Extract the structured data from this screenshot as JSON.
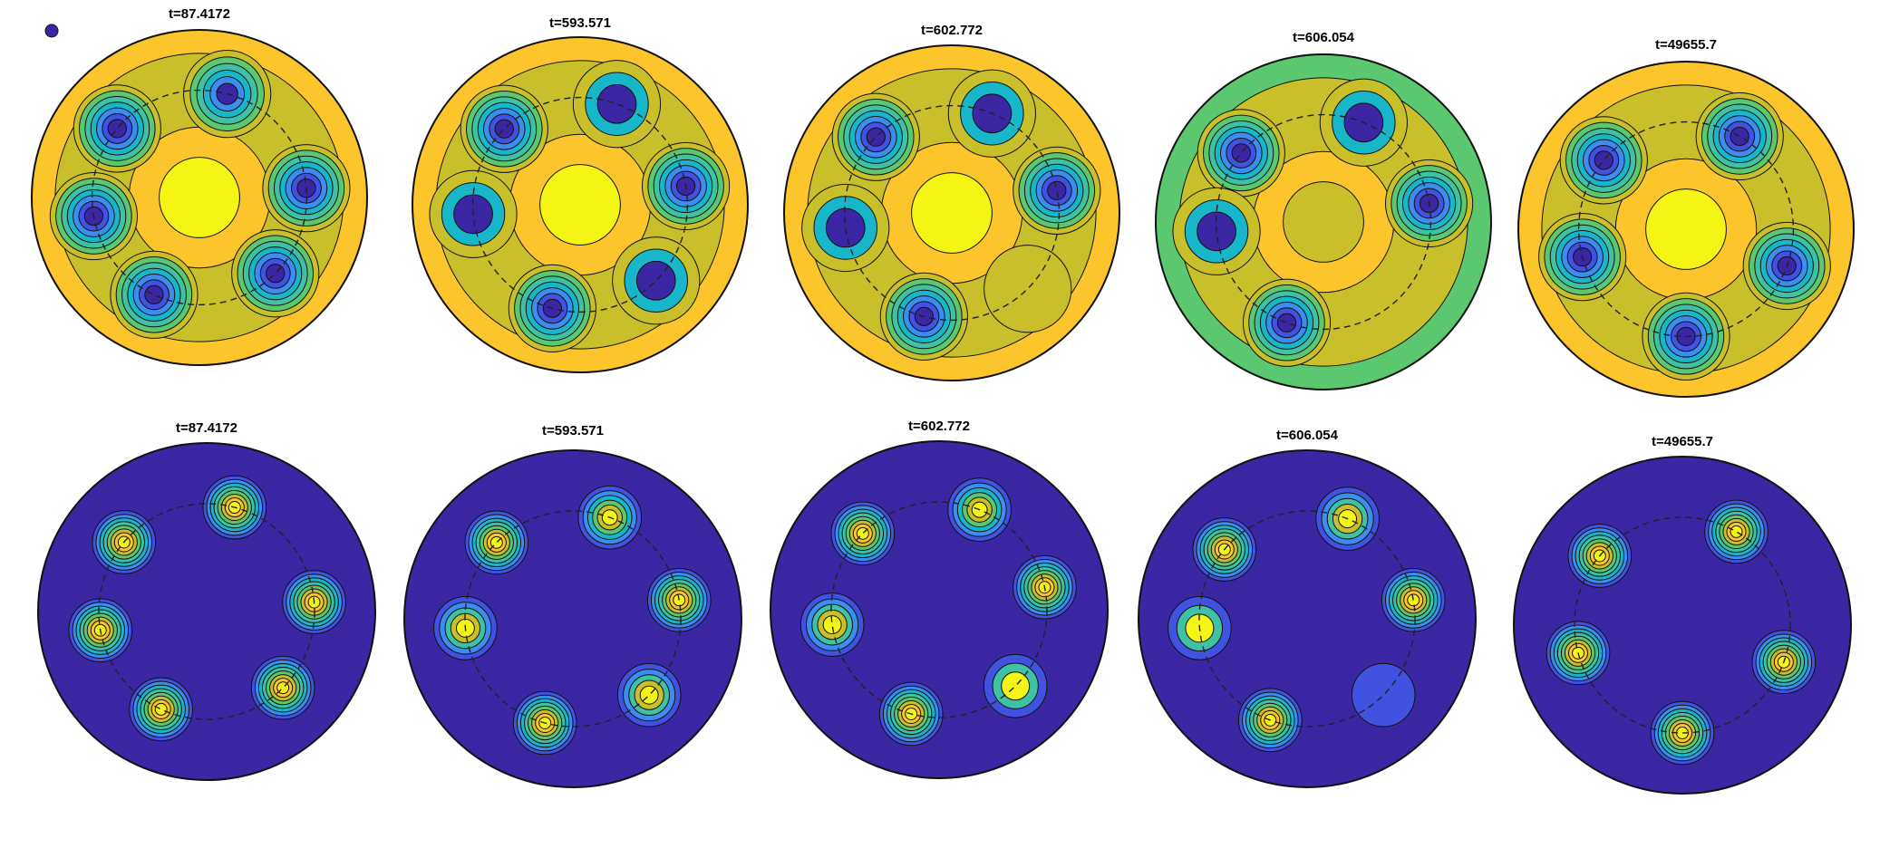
{
  "figure": {
    "top_row_label": "",
    "bottom_row_label": ""
  },
  "colors": {
    "deep_blue": "#3b26a3",
    "blue": "#4152e0",
    "blue_light": "#3b8ef0",
    "cyan": "#17b6c9",
    "teal": "#3ec2a3",
    "green": "#5bc870",
    "olive": "#c9bf2a",
    "orange": "#fdc52c",
    "yellow": "#f5f515",
    "dash": "#222222"
  },
  "chart_data": [
    {
      "type": "contour",
      "row": "top",
      "title": "t=87.4172",
      "background_level": "orange",
      "center_level": "yellow",
      "vortices": [
        {
          "angle": 140,
          "depth": 7
        },
        {
          "angle": 75,
          "depth": 6
        },
        {
          "angle": 5,
          "depth": 7
        },
        {
          "angle": -45,
          "depth": 7
        },
        {
          "angle": -115,
          "depth": 7
        },
        {
          "angle": -170,
          "depth": 7
        }
      ]
    },
    {
      "type": "contour",
      "row": "top",
      "title": "t=593.571",
      "background_level": "orange",
      "center_level": "yellow",
      "vortices": [
        {
          "angle": 135,
          "depth": 7
        },
        {
          "angle": 70,
          "depth": 3
        },
        {
          "angle": 10,
          "depth": 7
        },
        {
          "angle": -45,
          "depth": 3
        },
        {
          "angle": -105,
          "depth": 7
        },
        {
          "angle": -175,
          "depth": 3
        }
      ]
    },
    {
      "type": "contour",
      "row": "top",
      "title": "t=602.772",
      "background_level": "orange",
      "center_level": "yellow",
      "vortices": [
        {
          "angle": 135,
          "depth": 7
        },
        {
          "angle": 68,
          "depth": 3
        },
        {
          "angle": 12,
          "depth": 7
        },
        {
          "angle": -45,
          "depth": 1
        },
        {
          "angle": -105,
          "depth": 7
        },
        {
          "angle": -172,
          "depth": 3
        }
      ]
    },
    {
      "type": "contour",
      "row": "top",
      "title": "t=606.054",
      "background_level": "green",
      "center_level": "olive",
      "vortices": [
        {
          "angle": 140,
          "depth": 7
        },
        {
          "angle": 68,
          "depth": 3
        },
        {
          "angle": 10,
          "depth": 7
        },
        {
          "angle": -110,
          "depth": 7
        },
        {
          "angle": -175,
          "depth": 3
        }
      ]
    },
    {
      "type": "contour",
      "row": "top",
      "title": "t=49655.7",
      "background_level": "orange",
      "center_level": "yellow",
      "vortices": [
        {
          "angle": 140,
          "depth": 7
        },
        {
          "angle": 60,
          "depth": 7
        },
        {
          "angle": -20,
          "depth": 7
        },
        {
          "angle": -90,
          "depth": 7
        },
        {
          "angle": -165,
          "depth": 7
        }
      ]
    },
    {
      "type": "contour",
      "row": "bottom",
      "title": "t=87.4172",
      "background_level": "deep_blue",
      "vortices": [
        {
          "angle": 140,
          "depth": 8
        },
        {
          "angle": 75,
          "depth": 8
        },
        {
          "angle": 5,
          "depth": 8
        },
        {
          "angle": -45,
          "depth": 8
        },
        {
          "angle": -115,
          "depth": 8
        },
        {
          "angle": -170,
          "depth": 8
        }
      ]
    },
    {
      "type": "contour",
      "row": "bottom",
      "title": "t=593.571",
      "background_level": "deep_blue",
      "vortices": [
        {
          "angle": 135,
          "depth": 8
        },
        {
          "angle": 70,
          "depth": 6
        },
        {
          "angle": 10,
          "depth": 8
        },
        {
          "angle": -45,
          "depth": 5
        },
        {
          "angle": -105,
          "depth": 8
        },
        {
          "angle": -175,
          "depth": 5
        }
      ]
    },
    {
      "type": "contour",
      "row": "bottom",
      "title": "t=602.772",
      "background_level": "deep_blue",
      "vortices": [
        {
          "angle": 135,
          "depth": 8
        },
        {
          "angle": 68,
          "depth": 6
        },
        {
          "angle": 12,
          "depth": 8
        },
        {
          "angle": -45,
          "depth": 3
        },
        {
          "angle": -105,
          "depth": 8
        },
        {
          "angle": -172,
          "depth": 5
        }
      ]
    },
    {
      "type": "contour",
      "row": "bottom",
      "title": "t=606.054",
      "background_level": "deep_blue",
      "vortices": [
        {
          "angle": 140,
          "depth": 8
        },
        {
          "angle": 68,
          "depth": 5
        },
        {
          "angle": 10,
          "depth": 8
        },
        {
          "angle": -45,
          "depth": 1
        },
        {
          "angle": -110,
          "depth": 8
        },
        {
          "angle": -175,
          "depth": 3
        }
      ]
    },
    {
      "type": "contour",
      "row": "bottom",
      "title": "t=49655.7",
      "background_level": "deep_blue",
      "vortices": [
        {
          "angle": 140,
          "depth": 8
        },
        {
          "angle": 60,
          "depth": 8
        },
        {
          "angle": -20,
          "depth": 8
        },
        {
          "angle": -90,
          "depth": 8
        },
        {
          "angle": -165,
          "depth": 8
        }
      ]
    }
  ]
}
